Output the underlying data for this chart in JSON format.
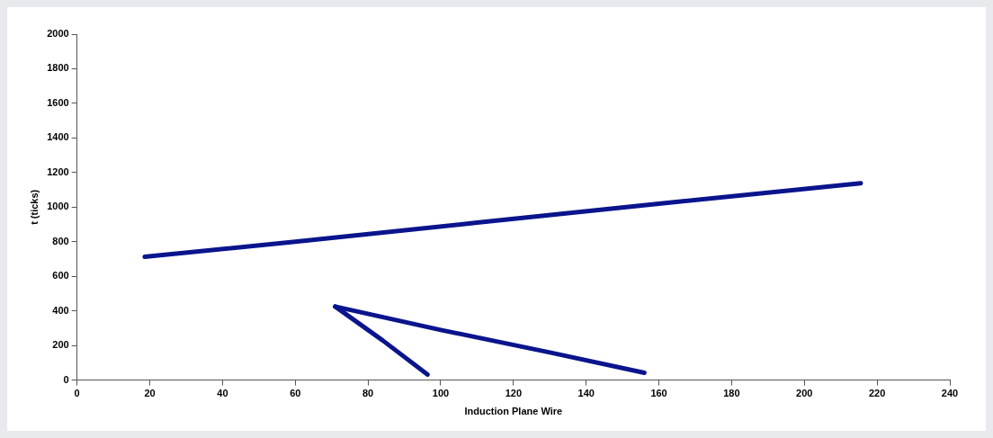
{
  "chart_data": {
    "type": "line",
    "xlabel": "Induction Plane Wire",
    "ylabel": "t (ticks)",
    "xlim": [
      0,
      240
    ],
    "xticks": [
      0,
      20,
      40,
      60,
      80,
      100,
      120,
      140,
      160,
      180,
      200,
      220,
      240
    ],
    "ylim": [
      0,
      2000
    ],
    "yticks": [
      0,
      200,
      400,
      600,
      800,
      1000,
      1200,
      1400,
      1600,
      1800,
      2000
    ],
    "grid": false,
    "legend": false,
    "marker": "none",
    "line_style": "solid",
    "series": [
      {
        "color": "#0a148c",
        "x": [
          18.6,
          60,
          110,
          160,
          215.5
        ],
        "values": [
          713,
          800,
          910,
          1020,
          1138
        ]
      },
      {
        "color": "#0a148c",
        "x": [
          71,
          100,
          130,
          156
        ],
        "values": [
          425,
          290,
          160,
          42
        ]
      },
      {
        "color": "#0a148c",
        "x": [
          71,
          84,
          96.4
        ],
        "values": [
          425,
          230,
          32
        ]
      }
    ]
  }
}
